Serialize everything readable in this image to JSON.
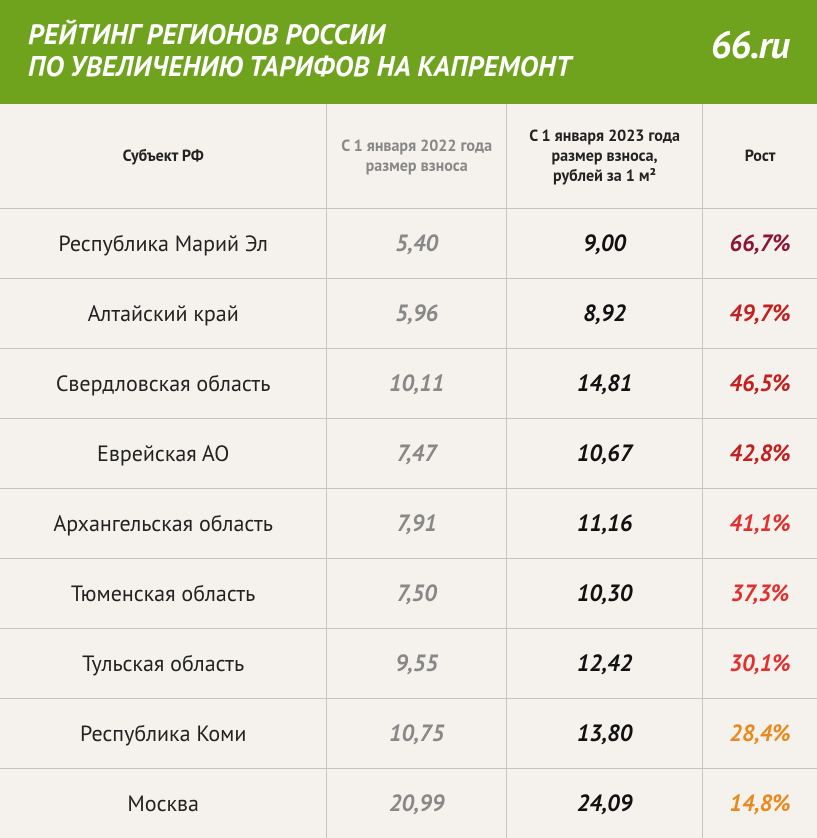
{
  "header": {
    "title_line1": "РЕЙТИНГ РЕГИОНОВ РОССИИ",
    "title_line2": "ПО УВЕЛИЧЕНИЮ ТАРИФОВ НА КАПРЕМОНТ",
    "logo": "66.ru"
  },
  "colors": {
    "header_bg": "#6fa31e",
    "page_bg": "#f5f2ed",
    "grid": "#c8c4bc",
    "muted": "#888888",
    "text": "#222222",
    "growth_dark": "#8b1635",
    "growth_red": "#c41e1e",
    "growth_lightred": "#e03030",
    "growth_orange": "#e88a1f"
  },
  "columns": {
    "region": "Субъект РФ",
    "y2022_l1": "С 1 января 2022 года",
    "y2022_l2": "размер взноса",
    "y2023_l1": "С 1 января 2023 года",
    "y2023_l2": "размер взноса,",
    "y2023_l3": "рублей за 1 м²",
    "growth": "Рост"
  },
  "rows": [
    {
      "region": "Республика Марий Эл",
      "y2022": "5,40",
      "y2023": "9,00",
      "growth": "66,7%",
      "growth_color": "#8b1635"
    },
    {
      "region": "Алтайский край",
      "y2022": "5,96",
      "y2023": "8,92",
      "growth": "49,7%",
      "growth_color": "#c41e1e"
    },
    {
      "region": "Свердловская область",
      "y2022": "10,11",
      "y2023": "14,81",
      "growth": "46,5%",
      "growth_color": "#c41e1e"
    },
    {
      "region": "Еврейская АО",
      "y2022": "7,47",
      "y2023": "10,67",
      "growth": "42,8%",
      "growth_color": "#c41e1e"
    },
    {
      "region": "Архангельская область",
      "y2022": "7,91",
      "y2023": "11,16",
      "growth": "41,1%",
      "growth_color": "#e03030"
    },
    {
      "region": "Тюменская область",
      "y2022": "7,50",
      "y2023": "10,30",
      "growth": "37,3%",
      "growth_color": "#e03030"
    },
    {
      "region": "Тульская область",
      "y2022": "9,55",
      "y2023": "12,42",
      "growth": "30,1%",
      "growth_color": "#e03030"
    },
    {
      "region": "Республика Коми",
      "y2022": "10,75",
      "y2023": "13,80",
      "growth": "28,4%",
      "growth_color": "#e88a1f"
    },
    {
      "region": "Москва",
      "y2022": "20,99",
      "y2023": "24,09",
      "growth": "14,8%",
      "growth_color": "#e88a1f"
    }
  ]
}
